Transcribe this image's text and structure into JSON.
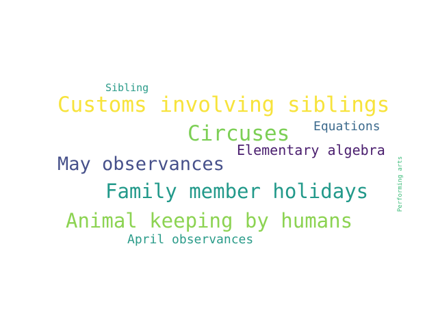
{
  "wordcloud": {
    "background": "#ffffff",
    "words": [
      {
        "text": "Customs involving siblings",
        "color": "#f7e33b"
      },
      {
        "text": "Circuses",
        "color": "#7ccf55"
      },
      {
        "text": "May observances",
        "color": "#46508a"
      },
      {
        "text": "Family member holidays",
        "color": "#22998a"
      },
      {
        "text": "Animal keeping by humans",
        "color": "#8cd352"
      },
      {
        "text": "Elementary algebra",
        "color": "#4a1e6e"
      },
      {
        "text": "Equations",
        "color": "#3c6a8d"
      },
      {
        "text": "April observances",
        "color": "#2a9b89"
      },
      {
        "text": "Sibling",
        "color": "#2a9b89"
      },
      {
        "text": "Performing arts",
        "color": "#3dbc7a"
      }
    ]
  }
}
